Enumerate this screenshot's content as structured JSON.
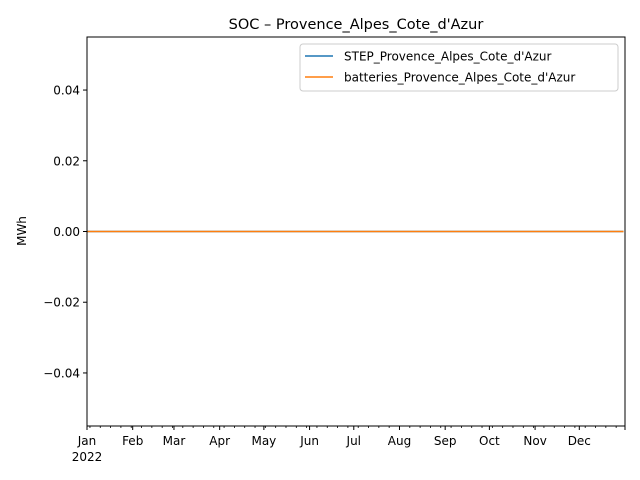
{
  "chart_data": {
    "type": "line",
    "title": "SOC – Provence_Alpes_Cote_d'Azur",
    "xlabel": "",
    "ylabel": "MWh",
    "x": [
      "2022-01-01",
      "2022-12-31"
    ],
    "x_range": [
      "2022-01-01",
      "2023-01-01"
    ],
    "x_ticks": [
      "Jan",
      "Feb",
      "Mar",
      "Apr",
      "May",
      "Jun",
      "Jul",
      "Aug",
      "Sep",
      "Oct",
      "Nov",
      "Dec"
    ],
    "x_year_label": "2022",
    "ylim": [
      -0.055,
      0.055
    ],
    "y_ticks": [
      "−0.04",
      "−0.02",
      "0.00",
      "0.02",
      "0.04"
    ],
    "grid": false,
    "legend_position": "top-right",
    "series": [
      {
        "name": "STEP_Provence_Alpes_Cote_d'Azur",
        "color": "#1f77b4",
        "values": [
          0,
          0
        ]
      },
      {
        "name": "batteries_Provence_Alpes_Cote_d'Azur",
        "color": "#ff7f0e",
        "values": [
          0,
          0
        ]
      }
    ]
  }
}
